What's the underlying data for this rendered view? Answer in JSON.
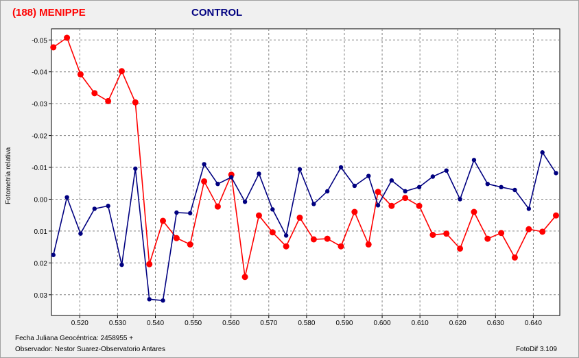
{
  "header": {
    "object_title": "(188) MENIPPE",
    "control_title": "CONTROL"
  },
  "footer": {
    "date_line": "Fecha Juliana Geocéntrica: 2458955 +",
    "observer_line": "Observador: Nestor Suarez-Observatorio Antares",
    "software": "FotoDif 3.109"
  },
  "colors": {
    "menippe": "#ff0000",
    "control": "#000080",
    "grid": "#808080",
    "plot_bg": "#ffffff"
  },
  "chart_data": {
    "type": "line",
    "title": "",
    "xlabel": "",
    "ylabel": "Fotometría relativa",
    "y_inverted": true,
    "xlim": [
      0.5125,
      0.647
    ],
    "ylim": [
      -0.0535,
      0.0365
    ],
    "grid": true,
    "x_ticks": [
      0.52,
      0.53,
      0.54,
      0.55,
      0.56,
      0.57,
      0.58,
      0.59,
      0.6,
      0.61,
      0.62,
      0.63,
      0.64
    ],
    "x_tick_labels": [
      "0.520",
      "0.530",
      "0.540",
      "0.550",
      "0.560",
      "0.570",
      "0.580",
      "0.590",
      "0.600",
      "0.610",
      "0.620",
      "0.630",
      "0.640"
    ],
    "y_ticks": [
      -0.05,
      -0.04,
      -0.03,
      -0.02,
      -0.01,
      0.0,
      0.01,
      0.02,
      0.03
    ],
    "y_tick_labels": [
      "-0.05",
      "-0.04",
      "-0.03",
      "-0.02",
      "-0.01",
      "0.00",
      "0.01",
      "0.02",
      "0.03"
    ],
    "series": [
      {
        "name": "(188) MENIPPE",
        "color": "#ff0000",
        "x": [
          0.513,
          0.5166,
          0.5202,
          0.5239,
          0.5275,
          0.5311,
          0.5347,
          0.5384,
          0.542,
          0.5456,
          0.5492,
          0.5529,
          0.5565,
          0.5601,
          0.5637,
          0.5674,
          0.571,
          0.5746,
          0.5782,
          0.5819,
          0.5855,
          0.5891,
          0.5927,
          0.5964,
          0.5989,
          0.6025,
          0.6061,
          0.6098,
          0.6134,
          0.617,
          0.6206,
          0.6243,
          0.6279,
          0.6315,
          0.6351,
          0.6388,
          0.6424,
          0.646
        ],
        "y": [
          -0.0477,
          -0.0507,
          -0.0392,
          -0.0333,
          -0.0308,
          -0.0402,
          -0.0304,
          0.0204,
          0.0068,
          0.0122,
          0.0142,
          -0.0056,
          0.0023,
          -0.0077,
          0.0244,
          0.0051,
          0.0104,
          0.0148,
          0.0058,
          0.0126,
          0.0124,
          0.0148,
          0.004,
          0.0142,
          -0.0023,
          0.0021,
          -0.0004,
          0.0021,
          0.0112,
          0.0108,
          0.0155,
          0.004,
          0.0124,
          0.0106,
          0.0183,
          0.0094,
          0.0102,
          0.0051
        ]
      },
      {
        "name": "CONTROL",
        "color": "#000080",
        "x": [
          0.513,
          0.5166,
          0.5202,
          0.5239,
          0.5275,
          0.5311,
          0.5347,
          0.5384,
          0.542,
          0.5456,
          0.5492,
          0.5529,
          0.5565,
          0.5601,
          0.5637,
          0.5674,
          0.571,
          0.5746,
          0.5782,
          0.5819,
          0.5855,
          0.5891,
          0.5927,
          0.5964,
          0.5989,
          0.6025,
          0.6061,
          0.6098,
          0.6134,
          0.617,
          0.6206,
          0.6243,
          0.6279,
          0.6315,
          0.6351,
          0.6388,
          0.6424,
          0.646
        ],
        "y": [
          0.0175,
          -0.0006,
          0.0108,
          0.003,
          0.0021,
          0.0206,
          -0.0096,
          0.0314,
          0.0318,
          0.0042,
          0.0044,
          -0.011,
          -0.0048,
          -0.0069,
          0.0008,
          -0.008,
          0.0032,
          0.0114,
          -0.0094,
          0.0015,
          -0.0025,
          -0.01,
          -0.0042,
          -0.0073,
          0.0019,
          -0.0059,
          -0.0025,
          -0.0038,
          -0.0071,
          -0.009,
          0.0,
          -0.0123,
          -0.0048,
          -0.0038,
          -0.0029,
          0.003,
          -0.0147,
          -0.0082
        ]
      }
    ]
  }
}
